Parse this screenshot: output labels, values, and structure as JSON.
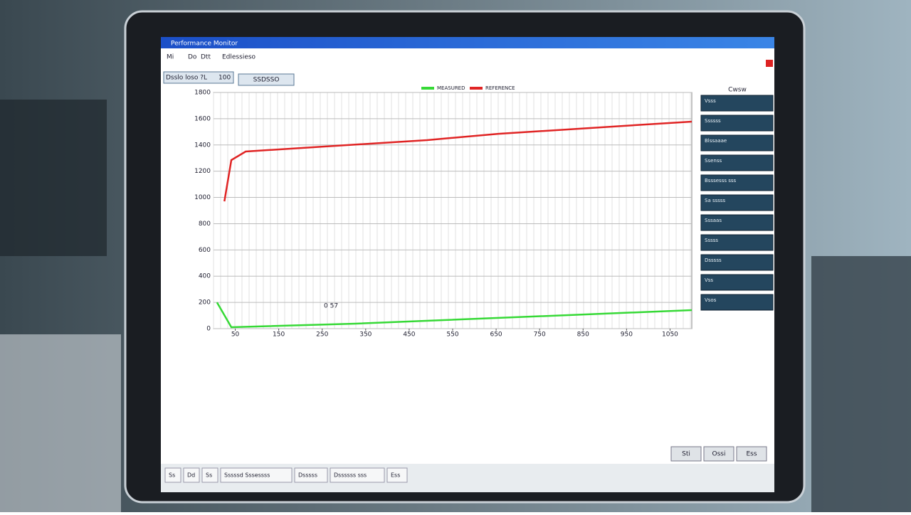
{
  "window": {
    "title": "Performance Monitor",
    "menu": [
      "Mi",
      "Do",
      "Dtt",
      "Edlessieso"
    ]
  },
  "toolbar": {
    "field_label": "Dsslo loso ?L",
    "field_value": "100",
    "button": "SSDSSO"
  },
  "chart_data": {
    "type": "line",
    "x": [
      25,
      41,
      74,
      491,
      655,
      1100
    ],
    "series": [
      {
        "name": "REFERENCE",
        "color": "#e02424",
        "x": [
          25,
          41,
          74,
          491,
          655,
          1100
        ],
        "values": [
          970,
          1285,
          1350,
          1437,
          1485,
          1578
        ]
      },
      {
        "name": "MEASURED",
        "color": "#36d936",
        "x": [
          8,
          41,
          327,
          1100
        ],
        "values": [
          200,
          11,
          38,
          141
        ]
      }
    ],
    "xlim": [
      0,
      1100
    ],
    "xticks": [
      50,
      150,
      250,
      350,
      450,
      550,
      650,
      750,
      850,
      950,
      1050
    ],
    "ylim": [
      0,
      1800
    ],
    "yticks": [
      0,
      200,
      400,
      600,
      800,
      1000,
      1200,
      1400,
      1600,
      1800
    ],
    "annotation": "0 57",
    "grid": true
  },
  "side_panel": {
    "header": "Cwsw",
    "buttons": [
      "Vsss",
      "Ssssss",
      "Blssaaae",
      "Ssenss",
      "Bsssesss sss",
      "Sa sssss",
      "Sssaas",
      "Sssss",
      "Dsssss",
      "Vss",
      "Vsos"
    ]
  },
  "footer": {
    "buttons": [
      "Sti",
      "Ossi",
      "Ess"
    ]
  },
  "taskbar": {
    "items": [
      "Ss",
      "Dd",
      "Ss",
      "Sssssd Sssessss",
      "Dsssss",
      "Dssssss sss",
      "Ess"
    ]
  }
}
